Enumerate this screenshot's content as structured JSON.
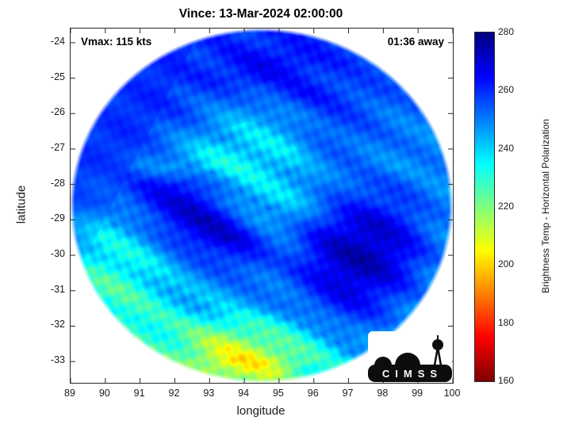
{
  "annotations": {
    "vmax": "Vmax: 115 kts",
    "eta": "01:36 away"
  },
  "logo": {
    "text": "CIMSS"
  },
  "chart_data": {
    "type": "heatmap",
    "title": "Vince: 13-Mar-2024 02:00:00",
    "xlabel": "longitude",
    "ylabel": "latitude",
    "xlim": [
      89,
      100
    ],
    "ylim": [
      -33.6,
      -23.6
    ],
    "xticks": [
      89,
      90,
      91,
      92,
      93,
      94,
      95,
      96,
      97,
      98,
      99,
      100
    ],
    "yticks": [
      -24,
      -25,
      -26,
      -27,
      -28,
      -29,
      -30,
      -31,
      -32,
      -33
    ],
    "grid_lines": false,
    "colorbar": {
      "label": "Brightness Temp - Horizontal Polarization",
      "min": 160,
      "max": 280,
      "ticks": [
        280,
        260,
        240,
        220,
        200,
        180,
        160
      ],
      "colormap": "jet-reversed",
      "units": "K"
    },
    "swath": {
      "center_lon": 94.5,
      "center_lat": -28.6,
      "radius_lon": 5.45,
      "radius_lat": 4.95
    },
    "grid": {
      "lon_start": 89,
      "lon_step": 0.5,
      "lat_start": -23.5,
      "lat_step": -0.5,
      "units": "K",
      "values": [
        [
          255,
          255,
          255,
          256,
          256,
          257,
          257,
          258,
          258,
          259,
          259,
          259,
          259,
          258,
          258,
          257,
          257,
          256,
          256,
          255,
          255,
          254,
          254
        ],
        [
          255,
          255,
          256,
          256,
          257,
          257,
          258,
          259,
          259,
          260,
          261,
          261,
          261,
          261,
          260,
          259,
          258,
          257,
          256,
          255,
          254,
          254,
          253
        ],
        [
          254,
          255,
          255,
          256,
          257,
          258,
          259,
          259,
          260,
          262,
          263,
          265,
          265,
          264,
          262,
          260,
          259,
          257,
          256,
          255,
          254,
          253,
          253
        ],
        [
          254,
          255,
          256,
          257,
          258,
          258,
          259,
          259,
          260,
          261,
          263,
          264,
          263,
          262,
          260,
          259,
          257,
          256,
          255,
          254,
          253,
          252,
          252
        ],
        [
          254,
          255,
          256,
          257,
          258,
          259,
          258,
          257,
          255,
          254,
          253,
          255,
          258,
          261,
          262,
          260,
          258,
          256,
          255,
          253,
          252,
          252,
          251
        ],
        [
          255,
          256,
          257,
          258,
          258,
          258,
          257,
          254,
          251,
          248,
          246,
          246,
          248,
          252,
          256,
          258,
          257,
          255,
          253,
          252,
          252,
          251,
          251
        ],
        [
          255,
          256,
          257,
          258,
          257,
          256,
          253,
          250,
          246,
          243,
          242,
          242,
          243,
          247,
          252,
          255,
          255,
          254,
          252,
          251,
          251,
          250,
          250
        ],
        [
          256,
          257,
          258,
          257,
          255,
          252,
          248,
          244,
          240,
          238,
          237,
          238,
          240,
          244,
          249,
          252,
          253,
          252,
          251,
          250,
          250,
          250,
          249
        ],
        [
          257,
          257,
          256,
          255,
          253,
          250,
          246,
          242,
          238,
          236,
          236,
          237,
          239,
          243,
          248,
          251,
          252,
          251,
          250,
          249,
          249,
          249,
          249
        ],
        [
          256,
          255,
          254,
          256,
          260,
          264,
          265,
          261,
          253,
          246,
          241,
          240,
          241,
          243,
          247,
          252,
          255,
          256,
          255,
          254,
          252,
          250,
          249
        ],
        [
          254,
          253,
          253,
          255,
          259,
          264,
          268,
          269,
          263,
          252,
          245,
          242,
          242,
          244,
          249,
          254,
          258,
          261,
          260,
          258,
          254,
          251,
          249
        ],
        [
          248,
          245,
          243,
          246,
          252,
          259,
          266,
          270,
          271,
          266,
          255,
          247,
          246,
          249,
          256,
          262,
          266,
          268,
          267,
          263,
          257,
          252,
          249
        ],
        [
          244,
          240,
          238,
          240,
          245,
          252,
          259,
          265,
          269,
          270,
          266,
          258,
          253,
          255,
          262,
          268,
          271,
          272,
          270,
          266,
          259,
          253,
          249
        ],
        [
          240,
          236,
          233,
          234,
          238,
          244,
          250,
          255,
          259,
          262,
          262,
          258,
          255,
          258,
          264,
          270,
          273,
          274,
          272,
          267,
          260,
          253,
          248
        ],
        [
          238,
          233,
          230,
          231,
          235,
          240,
          245,
          249,
          252,
          254,
          255,
          254,
          254,
          258,
          264,
          269,
          272,
          272,
          269,
          264,
          257,
          251,
          246
        ],
        [
          236,
          231,
          228,
          229,
          232,
          237,
          241,
          244,
          246,
          248,
          250,
          251,
          252,
          255,
          260,
          265,
          268,
          267,
          264,
          259,
          253,
          248,
          244
        ],
        [
          235,
          230,
          228,
          228,
          231,
          234,
          237,
          240,
          241,
          242,
          244,
          246,
          248,
          251,
          255,
          259,
          262,
          261,
          258,
          254,
          249,
          245,
          242
        ],
        [
          234,
          230,
          227,
          226,
          228,
          230,
          231,
          230,
          228,
          226,
          228,
          232,
          236,
          240,
          245,
          250,
          254,
          254,
          251,
          247,
          243,
          240,
          238
        ],
        [
          233,
          230,
          228,
          227,
          228,
          228,
          226,
          221,
          216,
          213,
          214,
          218,
          224,
          230,
          236,
          241,
          246,
          247,
          245,
          242,
          239,
          236,
          235
        ],
        [
          232,
          230,
          229,
          228,
          229,
          228,
          224,
          218,
          211,
          206,
          204,
          206,
          212,
          220,
          228,
          235,
          240,
          242,
          241,
          238,
          236,
          234,
          233
        ],
        [
          232,
          231,
          230,
          229,
          229,
          228,
          226,
          222,
          218,
          215,
          214,
          216,
          220,
          226,
          231,
          236,
          239,
          240,
          239,
          237,
          235,
          234,
          233
        ],
        [
          232,
          231,
          230,
          230,
          229,
          229,
          228,
          226,
          224,
          222,
          221,
          222,
          225,
          228,
          231,
          234,
          236,
          237,
          237,
          236,
          234,
          233,
          233
        ]
      ]
    }
  }
}
